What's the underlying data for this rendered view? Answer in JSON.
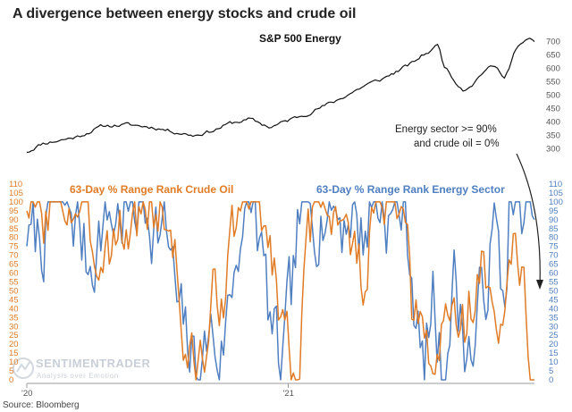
{
  "chart_data": [
    {
      "type": "line",
      "title": "A divergence between energy stocks and crude oil",
      "series": [
        {
          "name": "S&P 500 Energy",
          "color": "#111111",
          "anchors": [
            [
              0,
              287
            ],
            [
              0.03,
              320
            ],
            [
              0.06,
              330
            ],
            [
              0.1,
              345
            ],
            [
              0.15,
              385
            ],
            [
              0.2,
              390
            ],
            [
              0.25,
              380
            ],
            [
              0.3,
              360
            ],
            [
              0.33,
              350
            ],
            [
              0.37,
              370
            ],
            [
              0.4,
              395
            ],
            [
              0.44,
              410
            ],
            [
              0.48,
              380
            ],
            [
              0.52,
              410
            ],
            [
              0.55,
              430
            ],
            [
              0.58,
              455
            ],
            [
              0.61,
              480
            ],
            [
              0.64,
              510
            ],
            [
              0.67,
              540
            ],
            [
              0.7,
              560
            ],
            [
              0.73,
              590
            ],
            [
              0.76,
              620
            ],
            [
              0.78,
              650
            ],
            [
              0.8,
              670
            ],
            [
              0.81,
              695
            ],
            [
              0.82,
              620
            ],
            [
              0.84,
              560
            ],
            [
              0.86,
              520
            ],
            [
              0.88,
              545
            ],
            [
              0.9,
              590
            ],
            [
              0.92,
              610
            ],
            [
              0.93,
              590
            ],
            [
              0.94,
              570
            ],
            [
              0.95,
              600
            ],
            [
              0.96,
              660
            ],
            [
              0.98,
              700
            ],
            [
              0.995,
              710
            ],
            [
              1.0,
              700
            ]
          ]
        }
      ],
      "ylim": [
        255,
        735
      ],
      "yticks": [
        300,
        350,
        400,
        450,
        500,
        550,
        600,
        650,
        700
      ],
      "y_axis_side": "right"
    },
    {
      "type": "line",
      "series": [
        {
          "name": "63-Day % Range Rank Crude Oil",
          "color": "#e07b26",
          "axis": "left",
          "anchors": [
            [
              0,
              95
            ],
            [
              0.03,
              90
            ],
            [
              0.05,
              100
            ],
            [
              0.1,
              100
            ],
            [
              0.13,
              70
            ],
            [
              0.15,
              80
            ],
            [
              0.2,
              85
            ],
            [
              0.23,
              95
            ],
            [
              0.26,
              100
            ],
            [
              0.29,
              80
            ],
            [
              0.31,
              20
            ],
            [
              0.33,
              2
            ],
            [
              0.35,
              15
            ],
            [
              0.37,
              45
            ],
            [
              0.4,
              65
            ],
            [
              0.42,
              100
            ],
            [
              0.46,
              100
            ],
            [
              0.5,
              45
            ],
            [
              0.52,
              10
            ],
            [
              0.54,
              35
            ],
            [
              0.56,
              80
            ],
            [
              0.58,
              100
            ],
            [
              0.6,
              100
            ],
            [
              0.62,
              100
            ],
            [
              0.64,
              70
            ],
            [
              0.66,
              55
            ],
            [
              0.68,
              85
            ],
            [
              0.7,
              100
            ],
            [
              0.72,
              100
            ],
            [
              0.74,
              80
            ],
            [
              0.76,
              35
            ],
            [
              0.78,
              20
            ],
            [
              0.8,
              0
            ],
            [
              0.82,
              30
            ],
            [
              0.84,
              40
            ],
            [
              0.86,
              30
            ],
            [
              0.88,
              50
            ],
            [
              0.9,
              65
            ],
            [
              0.92,
              25
            ],
            [
              0.94,
              35
            ],
            [
              0.955,
              60
            ],
            [
              0.96,
              75
            ],
            [
              0.97,
              35
            ],
            [
              0.98,
              55
            ],
            [
              0.99,
              20
            ],
            [
              1.0,
              0
            ]
          ]
        },
        {
          "name": "63-Day % Range Rank Energy Sector",
          "color": "#4f7fc1",
          "axis": "right",
          "anchors": [
            [
              0,
              75
            ],
            [
              0.03,
              80
            ],
            [
              0.05,
              100
            ],
            [
              0.1,
              90
            ],
            [
              0.12,
              65
            ],
            [
              0.15,
              90
            ],
            [
              0.2,
              95
            ],
            [
              0.24,
              100
            ],
            [
              0.28,
              75
            ],
            [
              0.3,
              30
            ],
            [
              0.32,
              15
            ],
            [
              0.34,
              0
            ],
            [
              0.36,
              30
            ],
            [
              0.38,
              10
            ],
            [
              0.4,
              45
            ],
            [
              0.42,
              90
            ],
            [
              0.45,
              95
            ],
            [
              0.48,
              30
            ],
            [
              0.5,
              0
            ],
            [
              0.52,
              40
            ],
            [
              0.54,
              95
            ],
            [
              0.58,
              100
            ],
            [
              0.6,
              100
            ],
            [
              0.62,
              90
            ],
            [
              0.64,
              100
            ],
            [
              0.66,
              80
            ],
            [
              0.68,
              100
            ],
            [
              0.7,
              100
            ],
            [
              0.72,
              90
            ],
            [
              0.74,
              100
            ],
            [
              0.76,
              60
            ],
            [
              0.78,
              0
            ],
            [
              0.8,
              45
            ],
            [
              0.82,
              0
            ],
            [
              0.84,
              60
            ],
            [
              0.86,
              25
            ],
            [
              0.88,
              15
            ],
            [
              0.9,
              50
            ],
            [
              0.92,
              85
            ],
            [
              0.94,
              40
            ],
            [
              0.95,
              100
            ],
            [
              0.97,
              90
            ],
            [
              0.98,
              100
            ],
            [
              0.99,
              85
            ],
            [
              1.0,
              90
            ]
          ]
        }
      ],
      "ylim": [
        0,
        110
      ],
      "yticks_left": [
        0,
        5,
        10,
        15,
        20,
        25,
        30,
        35,
        40,
        45,
        50,
        55,
        60,
        65,
        70,
        75,
        80,
        85,
        90,
        95,
        100,
        105,
        110
      ],
      "yticks_right": [
        0,
        5,
        10,
        15,
        20,
        25,
        30,
        35,
        40,
        45,
        50,
        55,
        60,
        65,
        70,
        75,
        80,
        85,
        90,
        95,
        100,
        105,
        110
      ],
      "x_ticks": [
        {
          "label": "'20",
          "frac": 0.0
        },
        {
          "label": "'21",
          "frac": 0.515
        }
      ],
      "annotation": {
        "line1": "Energy sector >= 90%",
        "line2": "and crude oil = 0%"
      }
    }
  ],
  "source": "Source: Bloomberg",
  "watermark": {
    "line1": "SENTIMENTRADER",
    "line2": "Analysis over Emotion"
  }
}
